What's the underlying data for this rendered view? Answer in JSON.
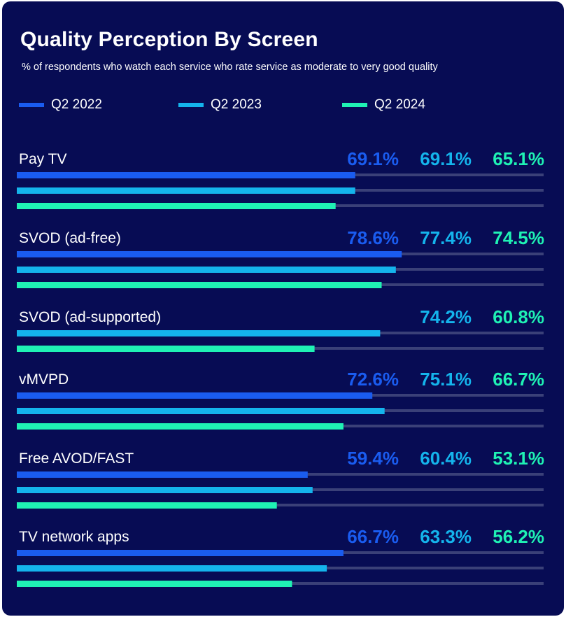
{
  "title": "Quality Perception By Screen",
  "subtitle": "% of respondents who watch each service who rate service as moderate to very good quality",
  "colors": {
    "background": "#070c54",
    "track": "#3a4078",
    "q2_2022": "#1a5cf0",
    "q2_2023": "#14b4ec",
    "q2_2024": "#1ff2b4"
  },
  "chart_data": {
    "type": "bar",
    "orientation": "horizontal",
    "xlim": [
      0,
      100
    ],
    "unit": "%",
    "legend_position": "top-left",
    "series": [
      {
        "name": "Q2 2022",
        "color": "#1a5cf0"
      },
      {
        "name": "Q2 2023",
        "color": "#14b4ec"
      },
      {
        "name": "Q2 2024",
        "color": "#1ff2b4"
      }
    ],
    "categories": [
      {
        "name": "Pay TV",
        "values": [
          69.1,
          69.1,
          65.1
        ],
        "labels": [
          "69.1%",
          "69.1%",
          "65.1%"
        ]
      },
      {
        "name": "SVOD (ad-free)",
        "values": [
          78.6,
          77.4,
          74.5
        ],
        "labels": [
          "78.6%",
          "77.4%",
          "74.5%"
        ]
      },
      {
        "name": "SVOD (ad-supported)",
        "values": [
          null,
          74.2,
          60.8
        ],
        "labels": [
          null,
          "74.2%",
          "60.8%"
        ]
      },
      {
        "name": "vMVPD",
        "values": [
          72.6,
          75.1,
          66.7
        ],
        "labels": [
          "72.6%",
          "75.1%",
          "66.7%"
        ]
      },
      {
        "name": "Free AVOD/FAST",
        "values": [
          59.4,
          60.4,
          53.1
        ],
        "labels": [
          "59.4%",
          "60.4%",
          "53.1%"
        ]
      },
      {
        "name": "TV network apps",
        "values": [
          66.7,
          63.3,
          56.2
        ],
        "labels": [
          "66.7%",
          "63.3%",
          "56.2%"
        ]
      }
    ]
  }
}
